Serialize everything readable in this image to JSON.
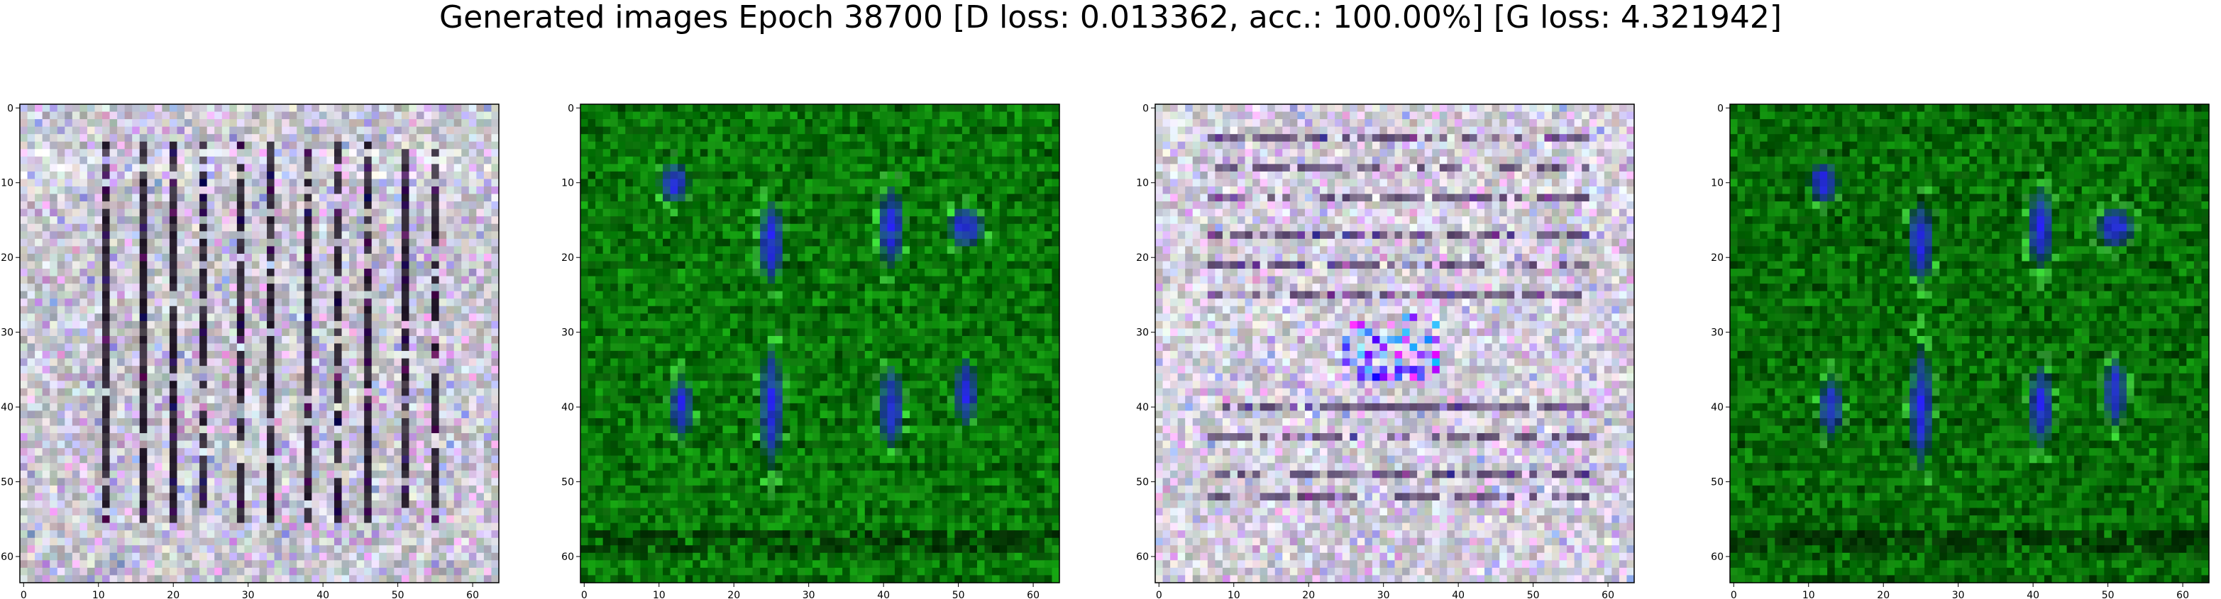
{
  "figure": {
    "title": "Generated images Epoch 38700 [D loss: 0.013362, acc.: 100.00%] [G loss: 4.321942]"
  },
  "axes_ticks": {
    "x": [
      "0",
      "10",
      "20",
      "30",
      "40",
      "50",
      "60"
    ],
    "y": [
      "0",
      "10",
      "20",
      "30",
      "40",
      "50",
      "60"
    ]
  },
  "image_size": 64,
  "panels": [
    {
      "style": "gray",
      "base_color": "#c8c8d0",
      "accent_color": "#1a1020",
      "pattern": "vertical-stripes"
    },
    {
      "style": "green",
      "base_color": "#0a7a0a",
      "accent_color": "#2a20ff",
      "pattern": "blue-blobs"
    },
    {
      "style": "gray",
      "base_color": "#d2d0da",
      "accent_color": "#3a2050",
      "pattern": "horizontal-lines"
    },
    {
      "style": "green",
      "base_color": "#087008",
      "accent_color": "#2a20ff",
      "pattern": "blue-blobs"
    }
  ]
}
